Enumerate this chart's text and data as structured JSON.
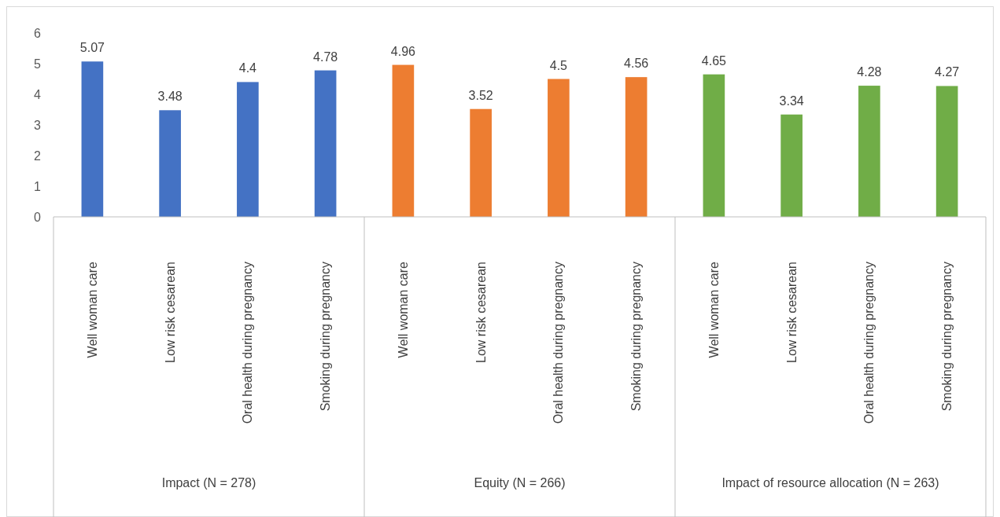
{
  "chart_data": {
    "type": "bar",
    "categories": [
      "Well woman care",
      "Low risk cesarean",
      "Oral health during pregnancy",
      "Smoking during pregnancy",
      "Well woman care",
      "Low risk cesarean",
      "Oral health during pregnancy",
      "Smoking during pregnancy",
      "Well woman care",
      "Low risk cesarean",
      "Oral health during pregnancy",
      "Smoking during pregnancy"
    ],
    "series": [
      {
        "color": "#4472c4",
        "values": [
          5.07,
          3.48,
          4.4,
          4.78,
          null,
          null,
          null,
          null,
          null,
          null,
          null,
          null
        ]
      },
      {
        "color": "#ed7d31",
        "values": [
          null,
          null,
          null,
          null,
          4.96,
          3.52,
          4.5,
          4.56,
          null,
          null,
          null,
          null
        ]
      },
      {
        "color": "#70ad47",
        "values": [
          null,
          null,
          null,
          null,
          null,
          null,
          null,
          null,
          4.65,
          3.34,
          4.28,
          4.27
        ]
      }
    ],
    "annotations": [
      "Impact (N = 278)",
      "Equity (N = 266)",
      "Impact of resource allocation (N = 263)"
    ],
    "ylim": [
      0,
      6
    ],
    "yticks": [
      0,
      1,
      2,
      3,
      4,
      5,
      6
    ],
    "data_labels": true,
    "grid": false
  }
}
